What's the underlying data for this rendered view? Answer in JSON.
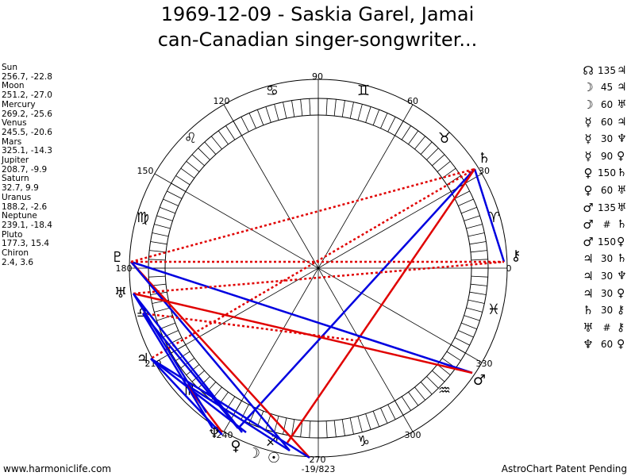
{
  "title_line1": "1969-12-09 - Saskia Garel, Jamai",
  "title_line2": "can-Canadian singer-songwriter...",
  "planets": [
    {
      "name": "Sun",
      "coords": "256.7, -22.8"
    },
    {
      "name": "Moon",
      "coords": "251.2, -27.0"
    },
    {
      "name": "Mercury",
      "coords": "269.2, -25.6"
    },
    {
      "name": "Venus",
      "coords": "245.5, -20.6"
    },
    {
      "name": "Mars",
      "coords": "325.1, -14.3"
    },
    {
      "name": "Jupiter",
      "coords": "208.7, -9.9"
    },
    {
      "name": "Saturn",
      "coords": "32.7, 9.9"
    },
    {
      "name": "Uranus",
      "coords": "188.2, -2.6"
    },
    {
      "name": "Neptune",
      "coords": "239.1, -18.4"
    },
    {
      "name": "Pluto",
      "coords": "177.3, 15.4"
    },
    {
      "name": "Chiron",
      "coords": "2.4, 3.6"
    }
  ],
  "aspects": [
    {
      "p1": "☊",
      "asp": "135",
      "p2": "♃"
    },
    {
      "p1": "☽",
      "asp": "45",
      "p2": "♃"
    },
    {
      "p1": "☽",
      "asp": "60",
      "p2": "♅"
    },
    {
      "p1": "☿",
      "asp": "60",
      "p2": "♃"
    },
    {
      "p1": "☿",
      "asp": "30",
      "p2": "♆"
    },
    {
      "p1": "☿",
      "asp": "90",
      "p2": "♀"
    },
    {
      "p1": "♀",
      "asp": "150",
      "p2": "♄"
    },
    {
      "p1": "♀",
      "asp": "60",
      "p2": "♅"
    },
    {
      "p1": "♂",
      "asp": "135",
      "p2": "♅"
    },
    {
      "p1": "♂",
      "asp": "#",
      "p2": "♄"
    },
    {
      "p1": "♂",
      "asp": "150",
      "p2": "♀"
    },
    {
      "p1": "♃",
      "asp": "30",
      "p2": "♄"
    },
    {
      "p1": "♃",
      "asp": "30",
      "p2": "♆"
    },
    {
      "p1": "♃",
      "asp": "30",
      "p2": "♀"
    },
    {
      "p1": "♄",
      "asp": "30",
      "p2": "⚷"
    },
    {
      "p1": "♅",
      "asp": "#",
      "p2": "⚷"
    },
    {
      "p1": "♆",
      "asp": "60",
      "p2": "♀"
    }
  ],
  "wheel": {
    "degree_labels": [
      "90",
      "60",
      "30",
      "0",
      "330",
      "300",
      "270",
      "240",
      "210",
      "180",
      "150",
      "120"
    ],
    "sign_glyphs": [
      "♈",
      "♉",
      "♊",
      "♋",
      "♌",
      "♍",
      "♎",
      "♏",
      "♐",
      "♑",
      "♒",
      "♓"
    ],
    "planet_glyphs": {
      "sun": "☉",
      "moon": "☽",
      "mercury": "☿",
      "venus": "♀",
      "mars": "♂",
      "jupiter": "♃",
      "saturn": "♄",
      "uranus": "♅",
      "neptune": "♆",
      "pluto": "♇",
      "chiron": "⚷",
      "node": "☊"
    },
    "year_label": "-19/823"
  },
  "colors": {
    "hard_aspect": "#e00000",
    "soft_aspect": "#0000e0"
  },
  "footer_left": "www.harmoniclife.com",
  "footer_right": "AstroChart Patent Pending"
}
